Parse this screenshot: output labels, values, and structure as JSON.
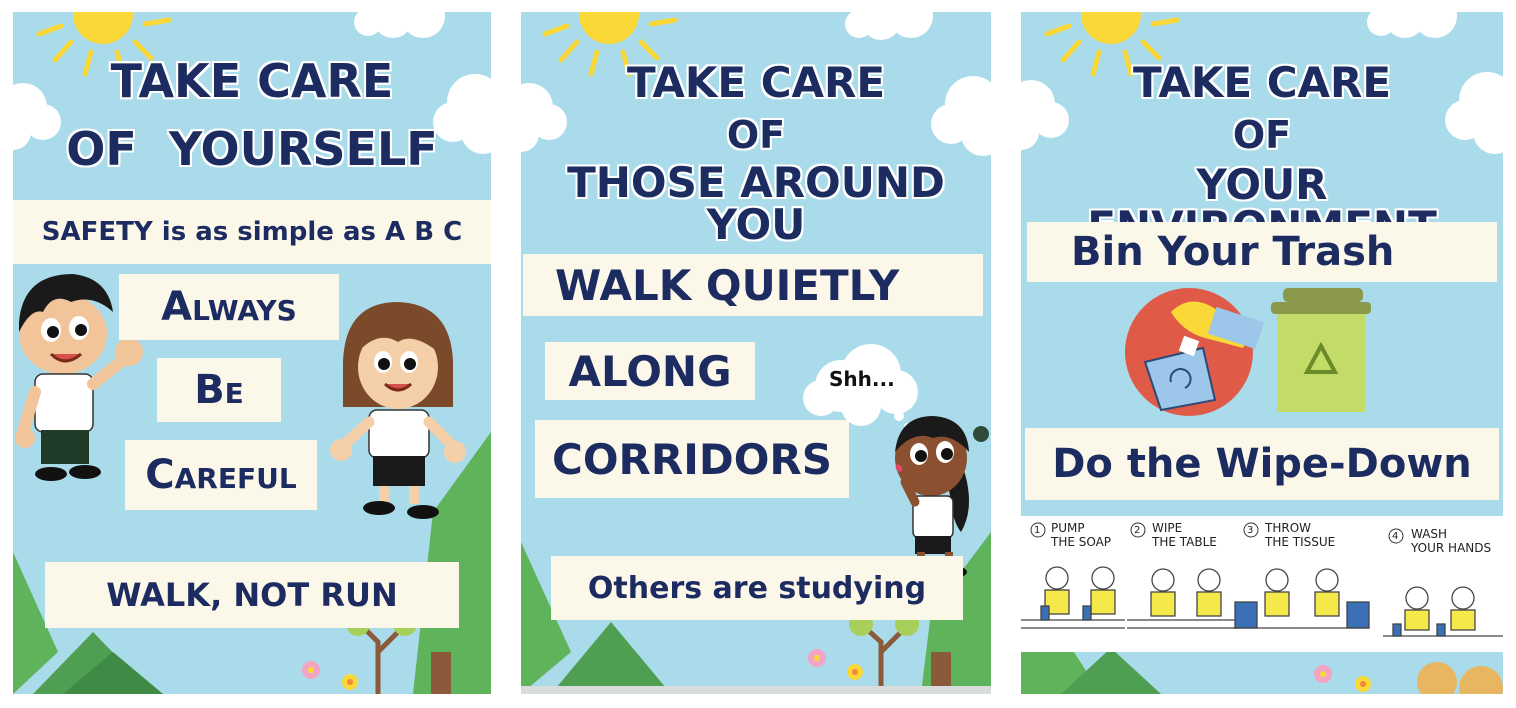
{
  "posters": [
    {
      "title_line1": "TAKE CARE",
      "title_line2": "OF  YOURSELF",
      "tagline": "SAFETY is as simple as A B C",
      "word_a": "Always",
      "word_b": "Be",
      "word_c": "Careful",
      "footer": "WALK, NOT RUN"
    },
    {
      "title_line1": "TAKE CARE",
      "title_line2": "OF",
      "title_line3": "THOSE AROUND YOU",
      "line1": "WALK QUIETLY",
      "line2": "ALONG",
      "line3": "CORRIDORS",
      "bubble": "Shh...",
      "footer": "Others are studying"
    },
    {
      "title_line1": "TAKE CARE",
      "title_line2": "OF",
      "title_line3": "YOUR ENVIRONMENT",
      "heading1": "Bin Your Trash",
      "heading2": "Do the Wipe-Down",
      "steps": [
        {
          "num": "1",
          "text": "PUMP\nTHE SOAP"
        },
        {
          "num": "2",
          "text": "WIPE\nTHE TABLE"
        },
        {
          "num": "3",
          "text": "THROW\nTHE TISSUE"
        },
        {
          "num": "4",
          "text": "WASH\nYOUR HANDS"
        }
      ]
    }
  ],
  "colors": {
    "sky": "#aadbea",
    "navy": "#1c2b60",
    "card": "#fbf8ea",
    "sun": "#f9d838",
    "tree": "#5fb35a",
    "bin_green": "#c3dc68"
  },
  "icons": [
    "sun-icon",
    "cloud-icon",
    "tree-icon",
    "flower-icon",
    "recycle-icon",
    "trash-bin-icon",
    "hand-drop-icon"
  ]
}
